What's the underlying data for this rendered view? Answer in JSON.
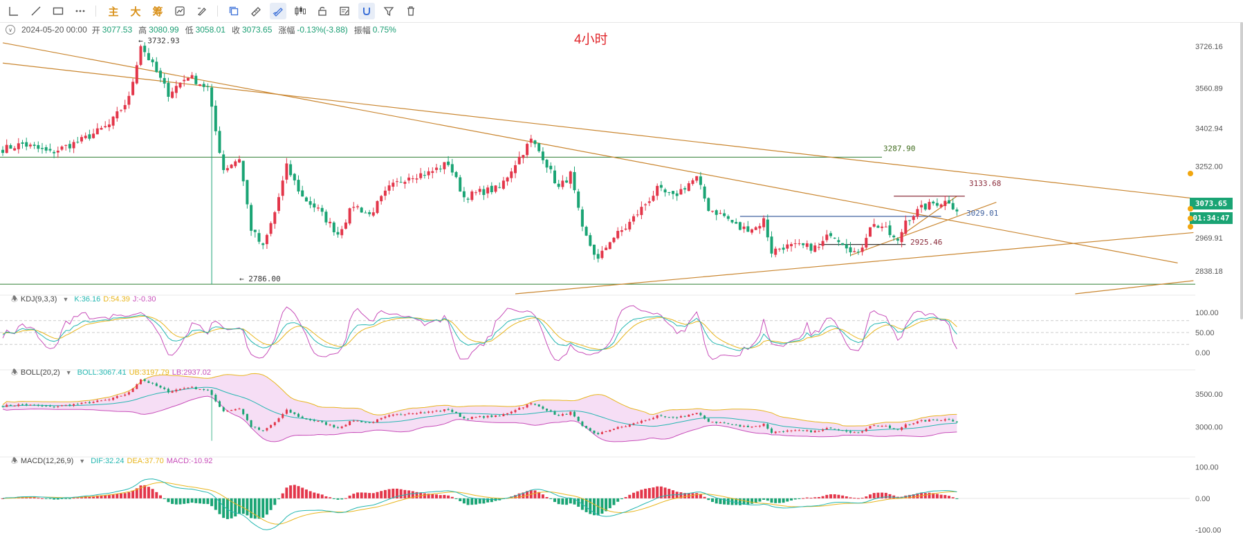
{
  "toolbar": {
    "icons": [
      "trend-line-icon",
      "ray-icon",
      "rectangle-icon",
      "more-icon"
    ],
    "text_buttons": [
      "主",
      "大",
      "筹"
    ],
    "tool_icons": [
      "indicator-icon",
      "draw-edit-icon",
      "copy-icon",
      "ruler-icon",
      "pen-icon",
      "candle-type-icon",
      "lock-icon",
      "note-icon",
      "magnet-icon",
      "filter-icon",
      "trash-icon"
    ]
  },
  "ohlc": {
    "datetime": "2024-05-20 00:00",
    "open_label": "开",
    "open": "3077.53",
    "high_label": "高",
    "high": "3080.99",
    "low_label": "低",
    "low": "3058.01",
    "close_label": "收",
    "close": "3073.65",
    "change_label": "涨幅",
    "change": "-0.13%(-3.88)",
    "amp_label": "振幅",
    "amp": "0.75%"
  },
  "interval_title": "4小时",
  "price_tags": {
    "last_price": "3073.65",
    "countdown": "01:34:47"
  },
  "indicators": {
    "kdj": {
      "name": "KDJ(9,3,3)",
      "k": "K:36.16",
      "d": "D:54.39",
      "j": "J:-0.30"
    },
    "boll": {
      "name": "BOLL(20,2)",
      "mid": "BOLL:3067.41",
      "ub": "UB:3197.79",
      "lb": "LB:2937.02"
    },
    "macd": {
      "name": "MACD(12,26,9)",
      "dif": "DIF:32.24",
      "dea": "DEA:37.70",
      "macd": "MACD:-10.92"
    }
  },
  "colors": {
    "up": "#e3364a",
    "down": "#1aa474",
    "trendline": "#c9852e",
    "hline": "#2e7d32",
    "blue_line": "#3d5f9e",
    "k": "#22b6b0",
    "d": "#e8b51c",
    "j": "#c74db9",
    "boll_fill": "#f4d8f3"
  },
  "chart_data": {
    "type": "candlestick",
    "main": {
      "y_axis_ticks": [
        "3726.16",
        "3560.89",
        "3402.94",
        "3252.00",
        "3107.76",
        "2969.91",
        "2838.18"
      ],
      "ylim": [
        2748,
        3800
      ],
      "annotations": [
        "3732.93",
        "2786.00",
        "3287.90",
        "3133.68",
        "3029.01",
        "2925.46"
      ],
      "horizontal_levels": [
        3287.9,
        2786
      ],
      "anchors": [
        [
          0,
          3320
        ],
        [
          5,
          3340
        ],
        [
          12,
          3305
        ],
        [
          20,
          3355
        ],
        [
          27,
          3415
        ],
        [
          32,
          3520
        ],
        [
          35,
          3733
        ],
        [
          38,
          3650
        ],
        [
          42,
          3540
        ],
        [
          47,
          3610
        ],
        [
          52,
          3560
        ],
        [
          54,
          3390
        ],
        [
          56,
          3240
        ],
        [
          60,
          3285
        ],
        [
          63,
          3005
        ],
        [
          66,
          2930
        ],
        [
          69,
          3070
        ],
        [
          72,
          3250
        ],
        [
          76,
          3130
        ],
        [
          80,
          3080
        ],
        [
          85,
          2985
        ],
        [
          89,
          3100
        ],
        [
          93,
          3060
        ],
        [
          98,
          3165
        ],
        [
          103,
          3215
        ],
        [
          108,
          3225
        ],
        [
          113,
          3265
        ],
        [
          117,
          3130
        ],
        [
          121,
          3150
        ],
        [
          126,
          3165
        ],
        [
          130,
          3265
        ],
        [
          134,
          3355
        ],
        [
          137,
          3290
        ],
        [
          141,
          3165
        ],
        [
          144,
          3220
        ],
        [
          147,
          3000
        ],
        [
          151,
          2880
        ],
        [
          154,
          2960
        ],
        [
          158,
          3010
        ],
        [
          162,
          3085
        ],
        [
          166,
          3160
        ],
        [
          170,
          3130
        ],
        [
          174,
          3185
        ],
        [
          176,
          3205
        ],
        [
          179,
          3085
        ],
        [
          183,
          3055
        ],
        [
          187,
          3005
        ],
        [
          191,
          3010
        ],
        [
          193,
          3040
        ],
        [
          195,
          2915
        ],
        [
          198,
          2935
        ],
        [
          203,
          2935
        ],
        [
          207,
          2930
        ],
        [
          210,
          2990
        ],
        [
          214,
          2940
        ],
        [
          217,
          2900
        ],
        [
          220,
          3020
        ],
        [
          223,
          3015
        ],
        [
          227,
          2950
        ],
        [
          229,
          3040
        ],
        [
          233,
          3085
        ],
        [
          236,
          3105
        ],
        [
          240,
          3115
        ],
        [
          242,
          3074
        ]
      ],
      "trendlines": [
        {
          "from": [
            0,
            3660
          ],
          "to": [
            302,
            3125
          ]
        },
        {
          "from": [
            0,
            3740
          ],
          "to": [
            298,
            2870
          ]
        },
        {
          "from": [
            130,
            2748
          ],
          "to": [
            302,
            2990
          ]
        },
        {
          "from": [
            272,
            2748
          ],
          "to": [
            302,
            2800
          ]
        },
        {
          "from": [
            215,
            2900
          ],
          "to": [
            252,
            3110
          ]
        },
        {
          "from": [
            228,
            2980
          ],
          "to": [
            242,
            3134
          ]
        }
      ],
      "level_segments": [
        {
          "y": 3054,
          "from": 187,
          "to": 238
        },
        {
          "y": 3134,
          "from": 226,
          "to": 244
        },
        {
          "y": 2943,
          "from": 207,
          "to": 229
        }
      ]
    },
    "kdj": {
      "ylim": [
        -35,
        135
      ],
      "ticks": [
        "100.00",
        "50.00",
        "0.00"
      ],
      "dashed_levels": [
        80,
        50,
        20
      ]
    },
    "boll": {
      "ylim": [
        2580,
        3820
      ],
      "ticks": [
        "3500.00",
        "3000.00"
      ]
    },
    "macd": {
      "ylim": [
        -110,
        125
      ],
      "ticks": [
        "100.00",
        "0.00",
        "-100.00"
      ]
    }
  }
}
